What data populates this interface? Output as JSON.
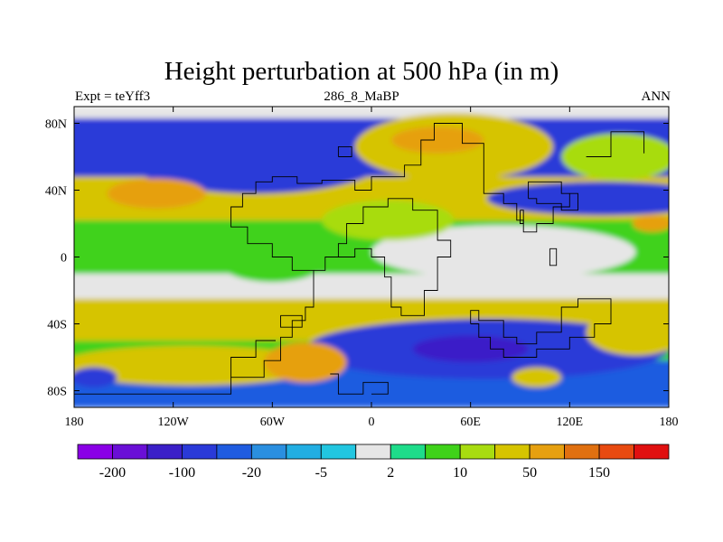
{
  "title": "Height perturbation at 500 hPa (in m)",
  "subtitle_left": "Expt = teYff3",
  "subtitle_center": "286_8_MaBP",
  "subtitle_right": "ANN",
  "chart_data": {
    "type": "heatmap",
    "title": "Height perturbation at 500 hPa (in m)",
    "xlabel": "",
    "ylabel": "",
    "xlim": [
      -180,
      180
    ],
    "ylim": [
      -90,
      90
    ],
    "x_ticks": [
      {
        "value": -180,
        "label": "180"
      },
      {
        "value": -120,
        "label": "120W"
      },
      {
        "value": -60,
        "label": "60W"
      },
      {
        "value": 0,
        "label": "0"
      },
      {
        "value": 60,
        "label": "60E"
      },
      {
        "value": 120,
        "label": "120E"
      },
      {
        "value": 180,
        "label": "180"
      }
    ],
    "y_ticks": [
      {
        "value": 80,
        "label": "80N"
      },
      {
        "value": 40,
        "label": "40N"
      },
      {
        "value": 0,
        "label": "0"
      },
      {
        "value": -40,
        "label": "40S"
      },
      {
        "value": -80,
        "label": "80S"
      }
    ],
    "colorbar": {
      "levels": [
        -200,
        -150,
        -100,
        -50,
        -20,
        -10,
        -5,
        -2,
        2,
        5,
        10,
        20,
        50,
        100,
        150,
        200
      ],
      "colors": [
        "#8a00e6",
        "#6a0fd6",
        "#3b1fc8",
        "#2a3ad8",
        "#1f5ce0",
        "#2a8fe0",
        "#22aee2",
        "#22c6e0",
        "#e6e6e6",
        "#1edc8a",
        "#3fd21a",
        "#a8dc10",
        "#d6c400",
        "#e6a010",
        "#e07010",
        "#e84a10",
        "#e01010"
      ],
      "labels": [
        {
          "value": -200,
          "label": "-200"
        },
        {
          "value": -100,
          "label": "-100"
        },
        {
          "value": -20,
          "label": "-20"
        },
        {
          "value": -5,
          "label": "-5"
        },
        {
          "value": 2,
          "label": "2"
        },
        {
          "value": 10,
          "label": "10"
        },
        {
          "value": 50,
          "label": "50"
        },
        {
          "value": 150,
          "label": "150"
        }
      ]
    },
    "field_bands": [
      {
        "lat_from": 90,
        "lat_to": 83,
        "value": 0
      },
      {
        "lat_from": 83,
        "lat_to": 48,
        "value": -60
      },
      {
        "lat_from": 48,
        "lat_to": 22,
        "value": 40
      },
      {
        "lat_from": 22,
        "lat_to": -10,
        "value": 5
      },
      {
        "lat_from": -10,
        "lat_to": -25,
        "value": 0
      },
      {
        "lat_from": -25,
        "lat_to": -50,
        "value": 35
      },
      {
        "lat_from": -50,
        "lat_to": -62,
        "value": 8
      },
      {
        "lat_from": -62,
        "lat_to": -90,
        "value": -30
      }
    ],
    "field_features": [
      {
        "lon": -70,
        "lat": 60,
        "rx_deg": 80,
        "ry_deg": 22,
        "value": -100
      },
      {
        "lon": 50,
        "lat": 66,
        "rx_deg": 60,
        "ry_deg": 20,
        "value": 45
      },
      {
        "lon": 40,
        "lat": 70,
        "rx_deg": 28,
        "ry_deg": 8,
        "value": 90
      },
      {
        "lon": 150,
        "lat": 60,
        "rx_deg": 35,
        "ry_deg": 14,
        "value": 15
      },
      {
        "lon": 140,
        "lat": 35,
        "rx_deg": 70,
        "ry_deg": 10,
        "value": -60
      },
      {
        "lon": -130,
        "lat": 38,
        "rx_deg": 30,
        "ry_deg": 9,
        "value": 80
      },
      {
        "lon": 80,
        "lat": 3,
        "rx_deg": 80,
        "ry_deg": 16,
        "value": 0
      },
      {
        "lon": 10,
        "lat": 22,
        "rx_deg": 40,
        "ry_deg": 12,
        "value": 10
      },
      {
        "lon": -60,
        "lat": 0,
        "rx_deg": 35,
        "ry_deg": 15,
        "value": 8
      },
      {
        "lon": 70,
        "lat": -55,
        "rx_deg": 110,
        "ry_deg": 18,
        "value": -70
      },
      {
        "lon": 60,
        "lat": -55,
        "rx_deg": 35,
        "ry_deg": 8,
        "value": -150
      },
      {
        "lon": -110,
        "lat": -65,
        "rx_deg": 80,
        "ry_deg": 12,
        "value": 40
      },
      {
        "lon": -40,
        "lat": -63,
        "rx_deg": 25,
        "ry_deg": 12,
        "value": 70
      },
      {
        "lon": 160,
        "lat": -45,
        "rx_deg": 30,
        "ry_deg": 14,
        "value": 40
      },
      {
        "lon": 100,
        "lat": -72,
        "rx_deg": 15,
        "ry_deg": 6,
        "value": 20
      },
      {
        "lon": -168,
        "lat": -72,
        "rx_deg": 14,
        "ry_deg": 6,
        "value": -60
      },
      {
        "lon": 170,
        "lat": 20,
        "rx_deg": 12,
        "ry_deg": 5,
        "value": 60
      }
    ],
    "coastline_segments": [
      [
        [
          -180,
          -82
        ],
        [
          -85,
          -82
        ],
        [
          -85,
          -72
        ],
        [
          -65,
          -72
        ],
        [
          -65,
          -62
        ],
        [
          -55,
          -62
        ],
        [
          -55,
          -48
        ],
        [
          -48,
          -48
        ],
        [
          -48,
          -38
        ],
        [
          -40,
          -38
        ],
        [
          -40,
          -30
        ],
        [
          -35,
          -30
        ],
        [
          -35,
          -8
        ],
        [
          -48,
          -8
        ],
        [
          -48,
          0
        ],
        [
          -60,
          0
        ],
        [
          -60,
          8
        ],
        [
          -75,
          8
        ],
        [
          -75,
          18
        ],
        [
          -85,
          18
        ],
        [
          -85,
          30
        ],
        [
          -78,
          30
        ],
        [
          -78,
          38
        ],
        [
          -70,
          38
        ],
        [
          -70,
          45
        ],
        [
          -60,
          45
        ],
        [
          -60,
          48
        ],
        [
          -45,
          48
        ],
        [
          -45,
          44
        ],
        [
          -30,
          44
        ],
        [
          -30,
          46
        ],
        [
          -10,
          46
        ],
        [
          -10,
          40
        ],
        [
          0,
          40
        ],
        [
          0,
          48
        ],
        [
          20,
          48
        ],
        [
          20,
          55
        ],
        [
          30,
          55
        ],
        [
          30,
          70
        ],
        [
          38,
          70
        ],
        [
          38,
          80
        ],
        [
          55,
          80
        ],
        [
          55,
          68
        ],
        [
          68,
          68
        ],
        [
          68,
          38
        ],
        [
          80,
          38
        ],
        [
          80,
          32
        ],
        [
          88,
          32
        ],
        [
          88,
          22
        ],
        [
          92,
          22
        ],
        [
          92,
          15
        ],
        [
          100,
          15
        ],
        [
          100,
          20
        ],
        [
          110,
          20
        ],
        [
          110,
          30
        ],
        [
          120,
          30
        ],
        [
          120,
          38
        ]
      ],
      [
        [
          -35,
          -8
        ],
        [
          -28,
          -8
        ],
        [
          -28,
          0
        ],
        [
          -20,
          0
        ],
        [
          -20,
          8
        ],
        [
          -15,
          8
        ],
        [
          -15,
          20
        ],
        [
          -5,
          20
        ],
        [
          -5,
          30
        ],
        [
          10,
          30
        ],
        [
          10,
          35
        ],
        [
          25,
          35
        ],
        [
          25,
          28
        ],
        [
          40,
          28
        ],
        [
          40,
          10
        ],
        [
          48,
          10
        ],
        [
          48,
          0
        ],
        [
          40,
          0
        ],
        [
          40,
          -20
        ],
        [
          32,
          -20
        ],
        [
          32,
          -35
        ],
        [
          18,
          -35
        ],
        [
          18,
          -30
        ],
        [
          12,
          -30
        ],
        [
          12,
          -12
        ],
        [
          8,
          -12
        ],
        [
          8,
          0
        ],
        [
          0,
          0
        ],
        [
          0,
          5
        ],
        [
          -10,
          5
        ],
        [
          -10,
          0
        ],
        [
          -20,
          0
        ]
      ],
      [
        [
          60,
          -40
        ],
        [
          60,
          -32
        ],
        [
          65,
          -32
        ],
        [
          65,
          -38
        ],
        [
          80,
          -38
        ],
        [
          80,
          -48
        ],
        [
          88,
          -48
        ],
        [
          88,
          -52
        ],
        [
          100,
          -52
        ],
        [
          100,
          -45
        ],
        [
          115,
          -45
        ],
        [
          115,
          -30
        ],
        [
          125,
          -30
        ],
        [
          125,
          -25
        ],
        [
          145,
          -25
        ],
        [
          145,
          -40
        ],
        [
          135,
          -40
        ],
        [
          135,
          -48
        ],
        [
          120,
          -48
        ],
        [
          120,
          -55
        ],
        [
          100,
          -55
        ],
        [
          100,
          -60
        ],
        [
          80,
          -60
        ],
        [
          80,
          -55
        ],
        [
          72,
          -55
        ],
        [
          72,
          -48
        ],
        [
          65,
          -48
        ],
        [
          65,
          -40
        ],
        [
          60,
          -40
        ]
      ],
      [
        [
          -55,
          -35
        ],
        [
          -55,
          -42
        ],
        [
          -42,
          -42
        ],
        [
          -42,
          -35
        ],
        [
          -55,
          -35
        ]
      ],
      [
        [
          -25,
          -70
        ],
        [
          -20,
          -70
        ],
        [
          -20,
          -82
        ],
        [
          -5,
          -82
        ],
        [
          -5,
          -75
        ],
        [
          10,
          -75
        ],
        [
          10,
          -82
        ],
        [
          0,
          -82
        ]
      ],
      [
        [
          -85,
          -72
        ],
        [
          -85,
          -60
        ],
        [
          -70,
          -60
        ],
        [
          -70,
          -50
        ],
        [
          -58,
          -50
        ]
      ],
      [
        [
          -20,
          60
        ],
        [
          -20,
          66
        ],
        [
          -12,
          66
        ],
        [
          -12,
          60
        ],
        [
          -20,
          60
        ]
      ],
      [
        [
          95,
          35
        ],
        [
          95,
          45
        ],
        [
          115,
          45
        ],
        [
          115,
          38
        ],
        [
          125,
          38
        ],
        [
          125,
          28
        ],
        [
          115,
          28
        ],
        [
          115,
          32
        ],
        [
          100,
          32
        ],
        [
          100,
          35
        ],
        [
          95,
          35
        ]
      ],
      [
        [
          90,
          28
        ],
        [
          92,
          28
        ],
        [
          92,
          20
        ],
        [
          90,
          20
        ],
        [
          90,
          28
        ]
      ],
      [
        [
          108,
          5
        ],
        [
          112,
          5
        ],
        [
          112,
          -5
        ],
        [
          108,
          -5
        ],
        [
          108,
          5
        ]
      ],
      [
        [
          130,
          60
        ],
        [
          145,
          60
        ],
        [
          145,
          75
        ],
        [
          165,
          75
        ],
        [
          165,
          62
        ]
      ]
    ]
  }
}
